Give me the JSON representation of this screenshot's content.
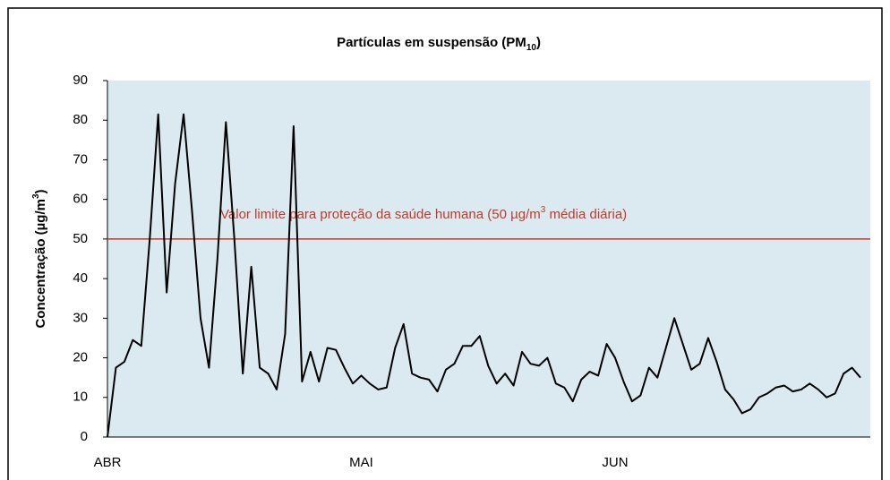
{
  "chart_data": {
    "type": "line",
    "title": [
      "Partículas em suspensão  (PM",
      "10",
      ")"
    ],
    "y_label": [
      "Concentração (µg/m",
      "3",
      ")"
    ],
    "limit": {
      "value": 50,
      "label": [
        "Valor limite para proteção da saúde humana  (50 µg/m",
        "3",
        " média diária)"
      ],
      "color": "#c0392b"
    },
    "categories": [
      "ABR",
      null,
      null,
      null,
      null,
      null,
      null,
      null,
      null,
      null,
      null,
      null,
      null,
      null,
      null,
      null,
      null,
      null,
      null,
      null,
      null,
      null,
      null,
      null,
      null,
      null,
      null,
      null,
      null,
      null,
      "MAI",
      null,
      null,
      null,
      null,
      null,
      null,
      null,
      null,
      null,
      null,
      null,
      null,
      null,
      null,
      null,
      null,
      null,
      null,
      null,
      null,
      null,
      null,
      null,
      null,
      null,
      null,
      null,
      null,
      null,
      "JUN",
      null,
      null,
      null,
      null,
      null,
      null,
      null,
      null,
      null,
      null,
      null,
      null,
      null,
      null,
      null,
      null,
      null,
      null,
      null,
      null,
      null,
      null,
      null,
      null,
      null,
      null,
      null,
      null,
      null
    ],
    "values": [
      0,
      17.5,
      19,
      24.5,
      23,
      50,
      81.5,
      36.5,
      64,
      81.5,
      57,
      30,
      17.5,
      45,
      79.5,
      50,
      16,
      43,
      17.5,
      16,
      12,
      26,
      78.5,
      14,
      21.5,
      14,
      22.5,
      22,
      17.5,
      13.5,
      15.5,
      13.5,
      12,
      12.5,
      22.5,
      28.5,
      16,
      15,
      14.5,
      11.5,
      17,
      18.5,
      23,
      23,
      25.5,
      18,
      13.5,
      16,
      13,
      21.5,
      18.5,
      18,
      20,
      13.5,
      12.5,
      9,
      14.5,
      16.5,
      15.5,
      23.5,
      20,
      14,
      9,
      10.5,
      17.5,
      15,
      22.5,
      30,
      23.5,
      17,
      18.5,
      25,
      19,
      12,
      9.5,
      6,
      7,
      10,
      11,
      12.5,
      13,
      11.5,
      12,
      13.5,
      12,
      10,
      11,
      16,
      17.5,
      15
    ],
    "color": "#000000",
    "background": "#dbeaf1",
    "ylim": [
      0,
      90
    ],
    "yticks": [
      0,
      10,
      20,
      30,
      40,
      50,
      60,
      70,
      80,
      90
    ]
  }
}
